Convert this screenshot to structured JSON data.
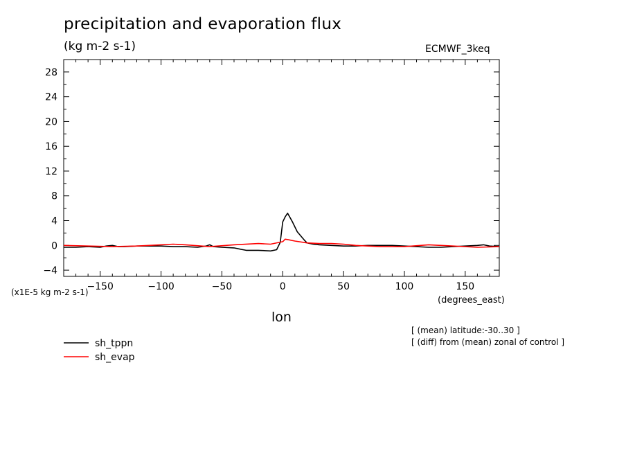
{
  "chart_data": {
    "type": "line",
    "title": "precipitation and evaporation flux",
    "units": "(kg m-2 s-1)",
    "dataset_label": "ECMWF_3keq",
    "y_scale_label": "(x1E-5 kg m-2 s-1)",
    "xlabel": "lon",
    "x_units": "(degrees_east)",
    "notes": [
      "[ (mean) latitude:-30..30 ]",
      "[ (diff) from (mean) zonal of control ]"
    ],
    "xlim": [
      -180,
      178
    ],
    "ylim": [
      -5,
      30
    ],
    "x_ticks": [
      -150,
      -100,
      -50,
      0,
      50,
      100,
      150
    ],
    "y_ticks": [
      -4,
      0,
      4,
      8,
      12,
      16,
      20,
      24,
      28
    ],
    "grid": false,
    "legend_placement": "bottom-left",
    "series": [
      {
        "name": "sh_tppn",
        "color": "#000000",
        "x": [
          -180,
          -170,
          -160,
          -150,
          -145,
          -140,
          -135,
          -130,
          -120,
          -110,
          -100,
          -90,
          -80,
          -70,
          -63,
          -60,
          -57,
          -50,
          -40,
          -35,
          -30,
          -20,
          -10,
          -5,
          -2,
          0,
          2,
          4,
          6,
          8,
          10,
          12,
          15,
          18,
          20,
          25,
          30,
          40,
          50,
          60,
          70,
          80,
          90,
          100,
          110,
          120,
          130,
          140,
          150,
          160,
          165,
          170,
          178
        ],
        "y": [
          -0.3,
          -0.3,
          -0.2,
          -0.3,
          -0.1,
          0.0,
          -0.2,
          -0.2,
          -0.1,
          -0.1,
          -0.1,
          -0.2,
          -0.2,
          -0.3,
          -0.1,
          0.1,
          -0.2,
          -0.3,
          -0.4,
          -0.6,
          -0.8,
          -0.8,
          -0.9,
          -0.7,
          0.5,
          3.8,
          4.6,
          5.2,
          4.5,
          3.8,
          3.0,
          2.2,
          1.5,
          0.8,
          0.4,
          0.2,
          0.1,
          0.0,
          -0.1,
          -0.1,
          0.0,
          0.0,
          0.0,
          -0.1,
          -0.2,
          -0.3,
          -0.3,
          -0.2,
          -0.1,
          0.0,
          0.1,
          -0.1,
          -0.2
        ]
      },
      {
        "name": "sh_evap",
        "color": "#ff0000",
        "x": [
          -180,
          -160,
          -140,
          -120,
          -100,
          -90,
          -80,
          -60,
          -40,
          -20,
          -10,
          0,
          2,
          5,
          10,
          20,
          30,
          40,
          50,
          60,
          80,
          100,
          120,
          140,
          160,
          178
        ],
        "y": [
          0.0,
          -0.1,
          -0.2,
          -0.1,
          0.1,
          0.2,
          0.1,
          -0.2,
          0.1,
          0.3,
          0.2,
          0.6,
          1.0,
          0.9,
          0.7,
          0.4,
          0.3,
          0.3,
          0.2,
          0.0,
          -0.2,
          -0.2,
          0.1,
          -0.1,
          -0.3,
          -0.2
        ]
      }
    ]
  }
}
